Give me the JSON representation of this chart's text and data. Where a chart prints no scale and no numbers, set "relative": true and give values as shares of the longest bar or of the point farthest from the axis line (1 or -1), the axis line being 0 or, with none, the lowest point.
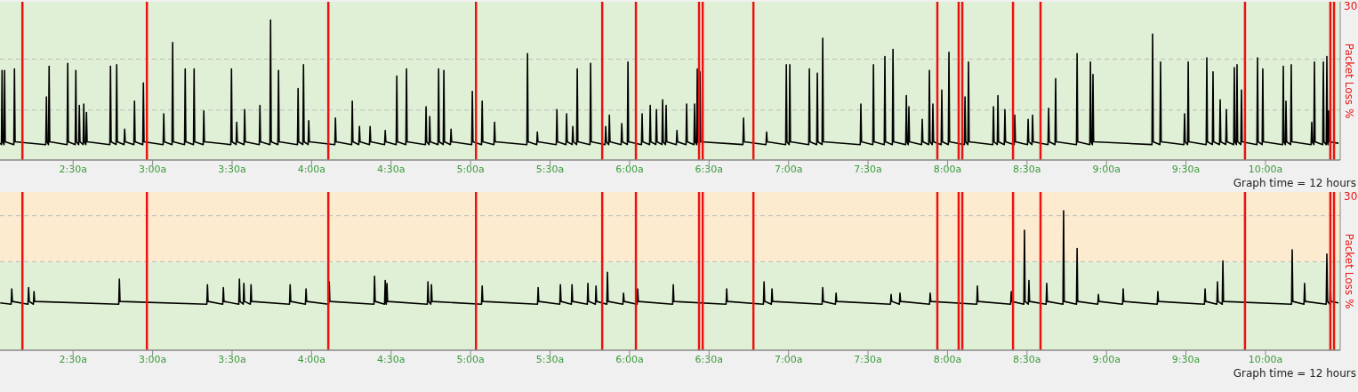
{
  "chart_data": [
    {
      "type": "line",
      "relative": true,
      "xlim": [
        2.04,
        10.47
      ],
      "xticks": [
        {
          "value": 2.5,
          "label": "2:30a"
        },
        {
          "value": 3,
          "label": "3:00a"
        },
        {
          "value": 3.5,
          "label": "3:30a"
        },
        {
          "value": 4,
          "label": "4:00a"
        },
        {
          "value": 4.5,
          "label": "4:30a"
        },
        {
          "value": 5,
          "label": "5:00a"
        },
        {
          "value": 5.5,
          "label": "5:30a"
        },
        {
          "value": 6,
          "label": "6:00a"
        },
        {
          "value": 6.5,
          "label": "6:30a"
        },
        {
          "value": 7,
          "label": "7:00a"
        },
        {
          "value": 7.5,
          "label": "7:30a"
        },
        {
          "value": 8,
          "label": "8:00a"
        },
        {
          "value": 8.5,
          "label": "8:30a"
        },
        {
          "value": 9,
          "label": "9:00a"
        },
        {
          "value": 9.5,
          "label": "9:30a"
        },
        {
          "value": 10,
          "label": "10:00a"
        }
      ],
      "y2label": "Packet Loss %",
      "annotations": [
        "Graph time = 12 hours",
        "30"
      ],
      "bands": [
        {
          "axis": "y",
          "from": 0,
          "to": 1.13,
          "color": "#e0f0d6"
        }
      ],
      "ref_lines": [
        {
          "axis": "y",
          "value": 0.357,
          "color": "#bbbbbb",
          "line_style": "dashed"
        },
        {
          "axis": "y",
          "value": 0.72,
          "color": "#bbbbbb",
          "line_style": "dashed"
        },
        {
          "axis": "x",
          "value": 2.181,
          "color": "#ee1111"
        },
        {
          "axis": "x",
          "value": 2.964,
          "color": "#ee1111"
        },
        {
          "axis": "x",
          "value": 4.105,
          "color": "#ee1111"
        },
        {
          "axis": "x",
          "value": 5.034,
          "color": "#ee1111"
        },
        {
          "axis": "x",
          "value": 5.828,
          "color": "#ee1111"
        },
        {
          "axis": "x",
          "value": 6.04,
          "color": "#ee1111"
        },
        {
          "axis": "x",
          "value": 6.437,
          "color": "#ee1111"
        },
        {
          "axis": "x",
          "value": 6.46,
          "color": "#ee1111"
        },
        {
          "axis": "x",
          "value": 6.779,
          "color": "#ee1111"
        },
        {
          "axis": "x",
          "value": 7.936,
          "color": "#ee1111"
        },
        {
          "axis": "x",
          "value": 8.07,
          "color": "#ee1111"
        },
        {
          "axis": "x",
          "value": 8.093,
          "color": "#ee1111"
        },
        {
          "axis": "x",
          "value": 8.412,
          "color": "#ee1111"
        },
        {
          "axis": "x",
          "value": 8.585,
          "color": "#ee1111"
        },
        {
          "axis": "x",
          "value": 9.871,
          "color": "#ee1111"
        },
        {
          "axis": "x",
          "value": 10.408,
          "color": "#ee1111"
        },
        {
          "axis": "x",
          "value": 10.431,
          "color": "#ee1111"
        }
      ],
      "series": [
        {
          "color": "#000000",
          "x": [
            2.041,
            2.049,
            2.053,
            2.057,
            2.065,
            2.069,
            2.073,
            2.127,
            2.131,
            2.135,
            2.328,
            2.332,
            2.336,
            2.345,
            2.349,
            2.353,
            2.462,
            2.466,
            2.47,
            2.513,
            2.517,
            2.521,
            2.535,
            2.539,
            2.543,
            2.563,
            2.567,
            2.571,
            2.58,
            2.584,
            2.588,
            2.731,
            2.735,
            2.739,
            2.77,
            2.774,
            2.778,
            2.82,
            2.824,
            2.828,
            2.882,
            2.886,
            2.89,
            2.938,
            2.942,
            2.946,
            3.066,
            3.07,
            3.074,
            3.122,
            3.126,
            3.13,
            3.201,
            3.205,
            3.209,
            3.257,
            3.261,
            3.265,
            3.318,
            3.322,
            3.326,
            3.492,
            3.496,
            3.5,
            3.525,
            3.529,
            3.533,
            3.575,
            3.579,
            3.583,
            3.671,
            3.675,
            3.679,
            3.738,
            3.742,
            3.746,
            3.788,
            3.792,
            3.796,
            3.911,
            3.915,
            3.919,
            3.945,
            3.949,
            3.953,
            3.978,
            3.982,
            3.986,
            4.146,
            4.15,
            4.154,
            4.252,
            4.256,
            4.26,
            4.297,
            4.301,
            4.305,
            4.364,
            4.368,
            4.372,
            4.459,
            4.463,
            4.467,
            4.532,
            4.536,
            4.54,
            4.593,
            4.597,
            4.601,
            4.716,
            4.72,
            4.724,
            4.739,
            4.743,
            4.747,
            4.795,
            4.799,
            4.803,
            4.828,
            4.832,
            4.836,
            4.873,
            4.877,
            4.881,
            5.007,
            5.011,
            5.015,
            5.069,
            5.073,
            5.077,
            5.147,
            5.151,
            5.155,
            5.354,
            5.358,
            5.362,
            5.416,
            5.42,
            5.424,
            5.539,
            5.543,
            5.547,
            5.6,
            5.604,
            5.608,
            5.639,
            5.643,
            5.647,
            5.667,
            5.671,
            5.675,
            5.751,
            5.755,
            5.759,
            5.846,
            5.85,
            5.854,
            5.869,
            5.873,
            5.877,
            5.947,
            5.951,
            5.955,
            5.986,
            5.99,
            5.994,
            6.075,
            6.079,
            6.083,
            6.126,
            6.13,
            6.134,
            6.165,
            6.169,
            6.173,
            6.204,
            6.208,
            6.212,
            6.226,
            6.23,
            6.234,
            6.294,
            6.298,
            6.302,
            6.355,
            6.359,
            6.363,
            6.405,
            6.409,
            6.413,
            6.422,
            6.426,
            6.43,
            6.439,
            6.443,
            6.447,
            6.713,
            6.717,
            6.721,
            6.858,
            6.862,
            6.866,
            6.982,
            6.986,
            6.99,
            7.004,
            7.008,
            7.012,
            7.127,
            7.131,
            7.135,
            7.177,
            7.181,
            7.185,
            7.211,
            7.215,
            7.219,
            7.451,
            7.455,
            7.459,
            7.53,
            7.534,
            7.538,
            7.602,
            7.606,
            7.61,
            7.653,
            7.657,
            7.661,
            7.737,
            7.741,
            7.745,
            7.753,
            7.757,
            7.761,
            7.837,
            7.841,
            7.845,
            7.882,
            7.886,
            7.89,
            7.904,
            7.908,
            7.912,
            7.96,
            7.964,
            7.968,
            8.005,
            8.009,
            8.013,
            8.106,
            8.11,
            8.114,
            8.128,
            8.132,
            8.136,
            8.285,
            8.289,
            8.293,
            8.313,
            8.317,
            8.321,
            8.357,
            8.361,
            8.365,
            8.419,
            8.423,
            8.427,
            8.503,
            8.507,
            8.511,
            8.531,
            8.535,
            8.539,
            8.632,
            8.636,
            8.64,
            8.676,
            8.68,
            8.684,
            8.811,
            8.815,
            8.819,
            8.895,
            8.899,
            8.903,
            8.911,
            8.915,
            8.919,
            9.286,
            9.29,
            9.294,
            9.336,
            9.34,
            9.344,
            9.487,
            9.491,
            9.495,
            9.51,
            9.514,
            9.518,
            9.627,
            9.631,
            9.635,
            9.666,
            9.67,
            9.674,
            9.711,
            9.715,
            9.719,
            9.75,
            9.754,
            9.758,
            9.8,
            9.804,
            9.808,
            9.817,
            9.821,
            9.825,
            9.845,
            9.849,
            9.853,
            9.946,
            9.95,
            9.954,
            9.979,
            9.983,
            9.987,
            10.108,
            10.112,
            10.116,
            10.125,
            10.129,
            10.133,
            10.158,
            10.162,
            10.166,
            10.287,
            10.291,
            10.295,
            10.304,
            10.308,
            10.312,
            10.36,
            10.364,
            10.368,
            10.382,
            10.386,
            10.39,
            10.393,
            10.397,
            10.401,
            10.459
          ],
          "values": [
            0.12,
            0.11,
            0.64,
            0.13,
            0.11,
            0.64,
            0.13,
            0.11,
            0.65,
            0.13,
            0.11,
            0.45,
            0.13,
            0.11,
            0.67,
            0.13,
            0.11,
            0.69,
            0.13,
            0.11,
            0.64,
            0.13,
            0.11,
            0.39,
            0.13,
            0.11,
            0.4,
            0.13,
            0.11,
            0.34,
            0.13,
            0.11,
            0.67,
            0.13,
            0.11,
            0.68,
            0.13,
            0.11,
            0.22,
            0.13,
            0.11,
            0.42,
            0.13,
            0.11,
            0.55,
            0.13,
            0.11,
            0.33,
            0.13,
            0.11,
            0.84,
            0.13,
            0.11,
            0.65,
            0.13,
            0.11,
            0.65,
            0.13,
            0.11,
            0.35,
            0.13,
            0.11,
            0.65,
            0.13,
            0.11,
            0.27,
            0.13,
            0.11,
            0.36,
            0.13,
            0.11,
            0.39,
            0.13,
            0.11,
            1,
            0.13,
            0.11,
            0.64,
            0.13,
            0.11,
            0.51,
            0.13,
            0.11,
            0.68,
            0.13,
            0.11,
            0.28,
            0.13,
            0.11,
            0.3,
            0.13,
            0.11,
            0.42,
            0.13,
            0.11,
            0.24,
            0.13,
            0.11,
            0.24,
            0.13,
            0.11,
            0.21,
            0.13,
            0.11,
            0.6,
            0.13,
            0.11,
            0.65,
            0.13,
            0.11,
            0.38,
            0.13,
            0.11,
            0.31,
            0.13,
            0.11,
            0.65,
            0.13,
            0.11,
            0.64,
            0.13,
            0.11,
            0.22,
            0.13,
            0.11,
            0.49,
            0.13,
            0.11,
            0.42,
            0.13,
            0.11,
            0.27,
            0.13,
            0.11,
            0.76,
            0.13,
            0.11,
            0.2,
            0.13,
            0.11,
            0.36,
            0.13,
            0.11,
            0.33,
            0.13,
            0.11,
            0.24,
            0.13,
            0.11,
            0.65,
            0.13,
            0.11,
            0.69,
            0.13,
            0.11,
            0.24,
            0.13,
            0.11,
            0.32,
            0.13,
            0.11,
            0.26,
            0.13,
            0.11,
            0.7,
            0.13,
            0.11,
            0.33,
            0.13,
            0.11,
            0.39,
            0.13,
            0.11,
            0.36,
            0.13,
            0.11,
            0.43,
            0.13,
            0.11,
            0.39,
            0.13,
            0.11,
            0.21,
            0.13,
            0.11,
            0.4,
            0.13,
            0.11,
            0.4,
            0.13,
            0.11,
            0.65,
            0.13,
            0.11,
            0.63,
            0.13,
            0.11,
            0.3,
            0.13,
            0.11,
            0.2,
            0.13,
            0.11,
            0.68,
            0.13,
            0.11,
            0.68,
            0.13,
            0.11,
            0.65,
            0.13,
            0.11,
            0.62,
            0.13,
            0.11,
            0.87,
            0.13,
            0.11,
            0.4,
            0.13,
            0.11,
            0.68,
            0.13,
            0.11,
            0.74,
            0.13,
            0.11,
            0.79,
            0.13,
            0.11,
            0.46,
            0.13,
            0.11,
            0.38,
            0.13,
            0.11,
            0.29,
            0.13,
            0.11,
            0.64,
            0.13,
            0.11,
            0.4,
            0.13,
            0.11,
            0.5,
            0.13,
            0.11,
            0.77,
            0.13,
            0.11,
            0.45,
            0.13,
            0.11,
            0.7,
            0.13,
            0.11,
            0.38,
            0.13,
            0.11,
            0.46,
            0.13,
            0.11,
            0.36,
            0.13,
            0.11,
            0.32,
            0.13,
            0.11,
            0.29,
            0.13,
            0.11,
            0.32,
            0.13,
            0.11,
            0.37,
            0.13,
            0.11,
            0.58,
            0.13,
            0.11,
            0.76,
            0.13,
            0.11,
            0.7,
            0.13,
            0.11,
            0.61,
            0.13,
            0.11,
            0.9,
            0.13,
            0.11,
            0.7,
            0.13,
            0.11,
            0.33,
            0.13,
            0.11,
            0.7,
            0.13,
            0.11,
            0.73,
            0.13,
            0.11,
            0.63,
            0.13,
            0.11,
            0.43,
            0.13,
            0.11,
            0.36,
            0.13,
            0.11,
            0.66,
            0.13,
            0.11,
            0.68,
            0.13,
            0.11,
            0.5,
            0.13,
            0.11,
            0.73,
            0.13,
            0.11,
            0.65,
            0.13,
            0.11,
            0.67,
            0.13,
            0.11,
            0.42,
            0.13,
            0.11,
            0.68,
            0.13,
            0.11,
            0.27,
            0.13,
            0.11,
            0.7,
            0.13,
            0.11,
            0.7,
            0.13,
            0.11,
            0.74,
            0.13,
            0.11,
            0.35,
            0.13,
            0.12
          ]
        }
      ]
    },
    {
      "type": "line",
      "relative": true,
      "xlim": [
        2.04,
        10.47
      ],
      "xticks": [
        {
          "value": 2.5,
          "label": "2:30a"
        },
        {
          "value": 3,
          "label": "3:00a"
        },
        {
          "value": 3.5,
          "label": "3:30a"
        },
        {
          "value": 4,
          "label": "4:00a"
        },
        {
          "value": 4.5,
          "label": "4:30a"
        },
        {
          "value": 5,
          "label": "5:00a"
        },
        {
          "value": 5.5,
          "label": "5:30a"
        },
        {
          "value": 6,
          "label": "6:00a"
        },
        {
          "value": 6.5,
          "label": "6:30a"
        },
        {
          "value": 7,
          "label": "7:00a"
        },
        {
          "value": 7.5,
          "label": "7:30a"
        },
        {
          "value": 8,
          "label": "8:00a"
        },
        {
          "value": 8.5,
          "label": "8:30a"
        },
        {
          "value": 9,
          "label": "9:00a"
        },
        {
          "value": 9.5,
          "label": "9:30a"
        },
        {
          "value": 10,
          "label": "10:00a"
        }
      ],
      "y2label": "Packet Loss %",
      "annotations": [
        "Graph time = 12 hours",
        "30"
      ],
      "bands": [
        {
          "axis": "y",
          "from": 0,
          "to": 0.635,
          "color": "#e0f0d6"
        },
        {
          "axis": "y",
          "from": 0.635,
          "to": 1.135,
          "color": "#fdebd0"
        }
      ],
      "ref_lines": [
        {
          "axis": "y",
          "value": 0.635,
          "color": "#bbbbbb",
          "line_style": "dashed"
        },
        {
          "axis": "y",
          "value": 0.965,
          "color": "#bbbbbb",
          "line_style": "dashed"
        },
        {
          "axis": "x",
          "value": 2.181,
          "color": "#ee1111"
        },
        {
          "axis": "x",
          "value": 2.964,
          "color": "#ee1111"
        },
        {
          "axis": "x",
          "value": 4.105,
          "color": "#ee1111"
        },
        {
          "axis": "x",
          "value": 5.034,
          "color": "#ee1111"
        },
        {
          "axis": "x",
          "value": 5.828,
          "color": "#ee1111"
        },
        {
          "axis": "x",
          "value": 6.04,
          "color": "#ee1111"
        },
        {
          "axis": "x",
          "value": 6.437,
          "color": "#ee1111"
        },
        {
          "axis": "x",
          "value": 6.46,
          "color": "#ee1111"
        },
        {
          "axis": "x",
          "value": 6.779,
          "color": "#ee1111"
        },
        {
          "axis": "x",
          "value": 7.936,
          "color": "#ee1111"
        },
        {
          "axis": "x",
          "value": 8.07,
          "color": "#ee1111"
        },
        {
          "axis": "x",
          "value": 8.093,
          "color": "#ee1111"
        },
        {
          "axis": "x",
          "value": 8.412,
          "color": "#ee1111"
        },
        {
          "axis": "x",
          "value": 8.585,
          "color": "#ee1111"
        },
        {
          "axis": "x",
          "value": 9.871,
          "color": "#ee1111"
        },
        {
          "axis": "x",
          "value": 10.408,
          "color": "#ee1111"
        },
        {
          "axis": "x",
          "value": 10.431,
          "color": "#ee1111"
        }
      ],
      "series": [
        {
          "color": "#000000",
          "x": [
            2.041,
            2.11,
            2.114,
            2.118,
            2.216,
            2.22,
            2.224,
            2.25,
            2.254,
            2.258,
            2.787,
            2.791,
            2.795,
            3.341,
            3.345,
            3.349,
            3.441,
            3.445,
            3.449,
            3.542,
            3.546,
            3.55,
            3.57,
            3.574,
            3.578,
            3.615,
            3.619,
            3.623,
            3.861,
            3.865,
            3.869,
            3.961,
            3.965,
            3.969,
            4.107,
            4.111,
            4.115,
            4.392,
            4.396,
            4.4,
            4.459,
            4.463,
            4.467,
            4.47,
            4.474,
            4.478,
            4.728,
            4.732,
            4.736,
            4.75,
            4.754,
            4.758,
            5.069,
            5.073,
            5.077,
            5.421,
            5.425,
            5.429,
            5.561,
            5.565,
            5.569,
            5.634,
            5.638,
            5.642,
            5.734,
            5.738,
            5.742,
            5.785,
            5.789,
            5.793,
            5.857,
            5.861,
            5.865,
            5.958,
            5.962,
            5.966,
            6.047,
            6.051,
            6.055,
            6.271,
            6.275,
            6.279,
            6.607,
            6.611,
            6.615,
            6.842,
            6.846,
            6.85,
            6.892,
            6.896,
            6.9,
            7.211,
            7.215,
            7.219,
            7.295,
            7.299,
            7.303,
            7.641,
            7.645,
            7.649,
            7.697,
            7.701,
            7.705,
            7.887,
            7.891,
            7.895,
            8.184,
            8.188,
            8.192,
            8.397,
            8.401,
            8.405,
            8.48,
            8.484,
            8.488,
            8.508,
            8.512,
            8.516,
            8.62,
            8.624,
            8.628,
            8.726,
            8.73,
            8.734,
            8.811,
            8.815,
            8.819,
            8.945,
            8.949,
            8.953,
            9.101,
            9.105,
            9.109,
            9.319,
            9.323,
            9.327,
            9.616,
            9.62,
            9.624,
            9.694,
            9.698,
            9.702,
            9.728,
            9.732,
            9.736,
            10.164,
            10.168,
            10.172,
            10.242,
            10.246,
            10.25,
            10.382,
            10.386,
            10.39,
            10.404,
            10.408,
            10.412,
            10.459
          ],
          "values": [
            0.34,
            0.33,
            0.44,
            0.35,
            0.33,
            0.45,
            0.35,
            0.33,
            0.42,
            0.35,
            0.33,
            0.51,
            0.35,
            0.33,
            0.47,
            0.35,
            0.33,
            0.45,
            0.35,
            0.33,
            0.51,
            0.35,
            0.33,
            0.48,
            0.35,
            0.33,
            0.47,
            0.35,
            0.33,
            0.47,
            0.35,
            0.33,
            0.44,
            0.35,
            0.33,
            0.49,
            0.35,
            0.33,
            0.53,
            0.35,
            0.33,
            0.5,
            0.35,
            0.33,
            0.48,
            0.35,
            0.33,
            0.49,
            0.35,
            0.33,
            0.47,
            0.35,
            0.33,
            0.46,
            0.35,
            0.33,
            0.45,
            0.35,
            0.33,
            0.47,
            0.35,
            0.33,
            0.47,
            0.35,
            0.33,
            0.48,
            0.35,
            0.33,
            0.46,
            0.35,
            0.33,
            0.56,
            0.35,
            0.33,
            0.41,
            0.35,
            0.33,
            0.44,
            0.35,
            0.33,
            0.47,
            0.35,
            0.33,
            0.44,
            0.35,
            0.33,
            0.49,
            0.35,
            0.33,
            0.44,
            0.35,
            0.33,
            0.45,
            0.35,
            0.33,
            0.41,
            0.35,
            0.33,
            0.4,
            0.35,
            0.33,
            0.41,
            0.35,
            0.33,
            0.41,
            0.35,
            0.33,
            0.46,
            0.35,
            0.33,
            0.42,
            0.35,
            0.33,
            0.86,
            0.35,
            0.33,
            0.5,
            0.35,
            0.33,
            0.48,
            0.35,
            0.33,
            1,
            0.35,
            0.33,
            0.73,
            0.35,
            0.33,
            0.4,
            0.35,
            0.33,
            0.44,
            0.35,
            0.33,
            0.42,
            0.35,
            0.33,
            0.44,
            0.35,
            0.33,
            0.49,
            0.35,
            0.33,
            0.64,
            0.35,
            0.33,
            0.72,
            0.35,
            0.33,
            0.48,
            0.35,
            0.33,
            0.69,
            0.35,
            0.33,
            0.48,
            0.35,
            0.34
          ]
        }
      ]
    }
  ]
}
